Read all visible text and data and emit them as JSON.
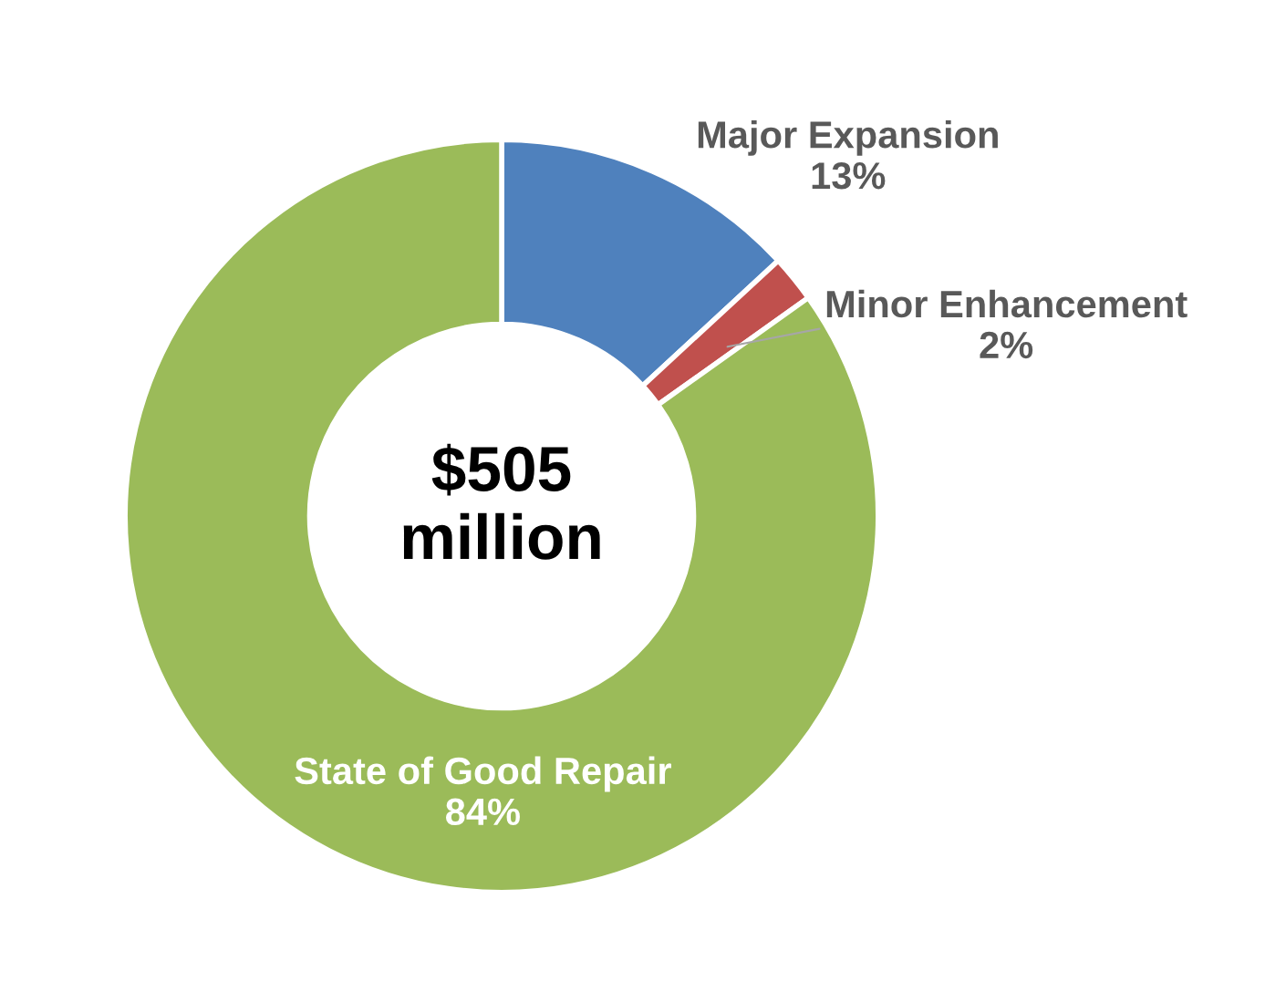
{
  "chart_data": {
    "type": "donut",
    "categories": [
      "Major Expansion",
      "Minor Enhancement",
      "State of Good Repair"
    ],
    "values": [
      13,
      2,
      84
    ],
    "value_labels": [
      "13%",
      "2%",
      "84%"
    ],
    "colors": [
      "#4f81bd",
      "#c0504d",
      "#9bbb59"
    ],
    "annotations": [
      "$505\nmillion"
    ],
    "legend": false
  }
}
